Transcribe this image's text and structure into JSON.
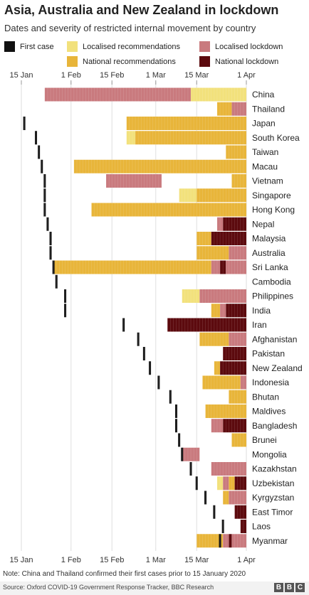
{
  "title": "Asia, Australia and New Zealand in lockdown",
  "subtitle": "Dates and severity of restricted internal movement by country",
  "legend": [
    {
      "key": "first",
      "label": "First case",
      "color": "#111111"
    },
    {
      "key": "lrec",
      "label": "Localised recommendations",
      "color": "#f2e17c"
    },
    {
      "key": "lloc",
      "label": "Localised lockdown",
      "color": "#c97a7e"
    },
    {
      "key": "nrec",
      "label": "National recommendations",
      "color": "#e8b53a"
    },
    {
      "key": "nloc",
      "label": "National lockdown",
      "color": "#5c0a0e"
    }
  ],
  "note": "Note: China and Thailand confirmed their first cases prior to 15 January 2020",
  "source": "Source: Oxford COVID-19 Government Response Tracker, BBC Research",
  "logo": [
    "B",
    "B",
    "C"
  ],
  "chart_data": {
    "type": "timeline",
    "x_axis": {
      "start": "2020-01-15",
      "end": "2020-04-01",
      "ticks": [
        {
          "date": "2020-01-15",
          "label": "15 Jan"
        },
        {
          "date": "2020-02-01",
          "label": "1 Feb"
        },
        {
          "date": "2020-02-15",
          "label": "15 Feb"
        },
        {
          "date": "2020-03-01",
          "label": "1 Mar"
        },
        {
          "date": "2020-03-15",
          "label": "15 Mar"
        },
        {
          "date": "2020-04-01",
          "label": "1 Apr"
        }
      ]
    },
    "countries": [
      {
        "name": "China",
        "first_case": null,
        "segments": [
          {
            "start": "2020-01-23",
            "end": "2020-03-13",
            "level": "lloc"
          },
          {
            "start": "2020-03-13",
            "end": "2020-04-01",
            "level": "lrec"
          }
        ]
      },
      {
        "name": "Thailand",
        "first_case": null,
        "segments": [
          {
            "start": "2020-03-22",
            "end": "2020-03-27",
            "level": "nrec"
          },
          {
            "start": "2020-03-27",
            "end": "2020-04-01",
            "level": "lloc"
          }
        ]
      },
      {
        "name": "Japan",
        "first_case": "2020-01-16",
        "segments": [
          {
            "start": "2020-02-20",
            "end": "2020-04-01",
            "level": "nrec"
          }
        ]
      },
      {
        "name": "South Korea",
        "first_case": "2020-01-20",
        "segments": [
          {
            "start": "2020-02-20",
            "end": "2020-02-23",
            "level": "lrec"
          },
          {
            "start": "2020-02-23",
            "end": "2020-04-01",
            "level": "nrec"
          }
        ]
      },
      {
        "name": "Taiwan",
        "first_case": "2020-01-21",
        "segments": [
          {
            "start": "2020-03-25",
            "end": "2020-04-01",
            "level": "nrec"
          }
        ]
      },
      {
        "name": "Macau",
        "first_case": "2020-01-22",
        "segments": [
          {
            "start": "2020-02-02",
            "end": "2020-04-01",
            "level": "nrec"
          }
        ]
      },
      {
        "name": "Vietnam",
        "first_case": "2020-01-23",
        "segments": [
          {
            "start": "2020-02-13",
            "end": "2020-03-03",
            "level": "lloc"
          },
          {
            "start": "2020-03-27",
            "end": "2020-04-01",
            "level": "nrec"
          }
        ]
      },
      {
        "name": "Singapore",
        "first_case": "2020-01-23",
        "segments": [
          {
            "start": "2020-03-09",
            "end": "2020-03-15",
            "level": "lrec"
          },
          {
            "start": "2020-03-15",
            "end": "2020-04-01",
            "level": "nrec"
          }
        ]
      },
      {
        "name": "Hong Kong",
        "first_case": "2020-01-23",
        "segments": [
          {
            "start": "2020-02-08",
            "end": "2020-04-01",
            "level": "nrec"
          }
        ]
      },
      {
        "name": "Nepal",
        "first_case": "2020-01-24",
        "segments": [
          {
            "start": "2020-03-22",
            "end": "2020-03-24",
            "level": "lloc"
          },
          {
            "start": "2020-03-24",
            "end": "2020-04-01",
            "level": "nloc"
          }
        ]
      },
      {
        "name": "Malaysia",
        "first_case": "2020-01-25",
        "segments": [
          {
            "start": "2020-03-15",
            "end": "2020-03-20",
            "level": "nrec"
          },
          {
            "start": "2020-03-20",
            "end": "2020-04-01",
            "level": "nloc"
          }
        ]
      },
      {
        "name": "Australia",
        "first_case": "2020-01-25",
        "segments": [
          {
            "start": "2020-03-15",
            "end": "2020-03-26",
            "level": "nrec"
          },
          {
            "start": "2020-03-26",
            "end": "2020-04-01",
            "level": "lloc"
          }
        ]
      },
      {
        "name": "Sri Lanka",
        "first_case": "2020-01-26",
        "segments": [
          {
            "start": "2020-01-26",
            "end": "2020-03-20",
            "level": "nrec"
          },
          {
            "start": "2020-03-20",
            "end": "2020-03-23",
            "level": "lloc"
          },
          {
            "start": "2020-03-23",
            "end": "2020-03-25",
            "level": "nloc"
          },
          {
            "start": "2020-03-25",
            "end": "2020-04-01",
            "level": "lloc"
          }
        ]
      },
      {
        "name": "Cambodia",
        "first_case": "2020-01-27",
        "segments": []
      },
      {
        "name": "Philippines",
        "first_case": "2020-01-30",
        "segments": [
          {
            "start": "2020-03-10",
            "end": "2020-03-16",
            "level": "lrec"
          },
          {
            "start": "2020-03-16",
            "end": "2020-04-01",
            "level": "lloc"
          }
        ]
      },
      {
        "name": "India",
        "first_case": "2020-01-30",
        "segments": [
          {
            "start": "2020-03-20",
            "end": "2020-03-23",
            "level": "nrec"
          },
          {
            "start": "2020-03-23",
            "end": "2020-03-25",
            "level": "lloc"
          },
          {
            "start": "2020-03-25",
            "end": "2020-04-01",
            "level": "nloc"
          }
        ]
      },
      {
        "name": "Iran",
        "first_case": "2020-02-19",
        "segments": [
          {
            "start": "2020-03-05",
            "end": "2020-04-01",
            "level": "nloc"
          }
        ]
      },
      {
        "name": "Afghanistan",
        "first_case": "2020-02-24",
        "segments": [
          {
            "start": "2020-03-16",
            "end": "2020-03-26",
            "level": "nrec"
          },
          {
            "start": "2020-03-26",
            "end": "2020-04-01",
            "level": "lloc"
          }
        ]
      },
      {
        "name": "Pakistan",
        "first_case": "2020-02-26",
        "segments": [
          {
            "start": "2020-03-24",
            "end": "2020-04-01",
            "level": "nloc"
          }
        ]
      },
      {
        "name": "New Zealand",
        "first_case": "2020-02-28",
        "segments": [
          {
            "start": "2020-03-21",
            "end": "2020-03-23",
            "level": "nrec"
          },
          {
            "start": "2020-03-23",
            "end": "2020-04-01",
            "level": "nloc"
          }
        ]
      },
      {
        "name": "Indonesia",
        "first_case": "2020-03-02",
        "segments": [
          {
            "start": "2020-03-17",
            "end": "2020-03-30",
            "level": "nrec"
          },
          {
            "start": "2020-03-30",
            "end": "2020-04-01",
            "level": "lloc"
          }
        ]
      },
      {
        "name": "Bhutan",
        "first_case": "2020-03-06",
        "segments": [
          {
            "start": "2020-03-26",
            "end": "2020-04-01",
            "level": "nrec"
          }
        ]
      },
      {
        "name": "Maldives",
        "first_case": "2020-03-08",
        "segments": [
          {
            "start": "2020-03-18",
            "end": "2020-04-01",
            "level": "nrec"
          }
        ]
      },
      {
        "name": "Bangladesh",
        "first_case": "2020-03-08",
        "segments": [
          {
            "start": "2020-03-20",
            "end": "2020-03-24",
            "level": "lloc"
          },
          {
            "start": "2020-03-24",
            "end": "2020-04-01",
            "level": "nloc"
          }
        ]
      },
      {
        "name": "Brunei",
        "first_case": "2020-03-09",
        "segments": [
          {
            "start": "2020-03-27",
            "end": "2020-04-01",
            "level": "nrec"
          }
        ]
      },
      {
        "name": "Mongolia",
        "first_case": "2020-03-10",
        "segments": [
          {
            "start": "2020-03-10",
            "end": "2020-03-16",
            "level": "lloc"
          }
        ]
      },
      {
        "name": "Kazakhstan",
        "first_case": "2020-03-13",
        "segments": [
          {
            "start": "2020-03-20",
            "end": "2020-04-01",
            "level": "lloc"
          }
        ]
      },
      {
        "name": "Uzbekistan",
        "first_case": "2020-03-15",
        "segments": [
          {
            "start": "2020-03-22",
            "end": "2020-03-24",
            "level": "lrec"
          },
          {
            "start": "2020-03-24",
            "end": "2020-03-26",
            "level": "lloc"
          },
          {
            "start": "2020-03-26",
            "end": "2020-03-28",
            "level": "nrec"
          },
          {
            "start": "2020-03-28",
            "end": "2020-04-01",
            "level": "nloc"
          }
        ]
      },
      {
        "name": "Kyrgyzstan",
        "first_case": "2020-03-18",
        "segments": [
          {
            "start": "2020-03-24",
            "end": "2020-03-26",
            "level": "nrec"
          },
          {
            "start": "2020-03-26",
            "end": "2020-04-01",
            "level": "lloc"
          }
        ]
      },
      {
        "name": "East Timor",
        "first_case": "2020-03-21",
        "segments": [
          {
            "start": "2020-03-28",
            "end": "2020-04-01",
            "level": "nloc"
          }
        ]
      },
      {
        "name": "Laos",
        "first_case": "2020-03-24",
        "segments": [
          {
            "start": "2020-03-30",
            "end": "2020-04-01",
            "level": "nloc"
          }
        ]
      },
      {
        "name": "Myanmar",
        "first_case": "2020-03-23",
        "segments": [
          {
            "start": "2020-03-15",
            "end": "2020-03-24",
            "level": "nrec"
          },
          {
            "start": "2020-03-24",
            "end": "2020-03-26",
            "level": "lloc"
          },
          {
            "start": "2020-03-26",
            "end": "2020-03-27",
            "level": "nloc"
          },
          {
            "start": "2020-03-27",
            "end": "2020-04-01",
            "level": "lloc"
          }
        ]
      }
    ]
  }
}
